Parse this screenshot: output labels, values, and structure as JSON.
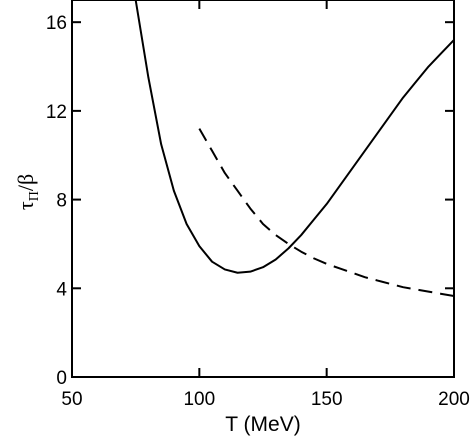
{
  "chart_data": {
    "type": "line",
    "xlabel": "T (MeV)",
    "ylabel": {
      "main": "τ",
      "sub": "Π",
      "tail": "/β"
    },
    "xlim": [
      50,
      200
    ],
    "ylim": [
      0,
      17
    ],
    "xticks": [
      "50",
      "100",
      "150",
      "200"
    ],
    "yticks": [
      "0",
      "4",
      "8",
      "12",
      "16"
    ],
    "grid": false,
    "series": [
      {
        "style": "solid",
        "x": [
          75,
          80,
          85,
          90,
          95,
          100,
          105,
          110,
          115,
          120,
          125,
          130,
          135,
          140,
          145,
          150,
          155,
          160,
          165,
          170,
          175,
          180,
          185,
          190,
          195,
          200
        ],
        "y": [
          17.0,
          13.5,
          10.5,
          8.4,
          6.9,
          5.9,
          5.2,
          4.85,
          4.7,
          4.75,
          4.95,
          5.3,
          5.8,
          6.4,
          7.1,
          7.8,
          8.6,
          9.4,
          10.2,
          11.0,
          11.8,
          12.6,
          13.3,
          14.0,
          14.6,
          15.2
        ]
      },
      {
        "style": "dashed",
        "x": [
          100,
          105,
          110,
          115,
          120,
          125,
          130,
          135,
          140,
          145,
          150,
          155,
          160,
          165,
          170,
          175,
          180,
          185,
          190,
          195,
          200
        ],
        "y": [
          11.2,
          10.2,
          9.2,
          8.4,
          7.6,
          6.9,
          6.4,
          6.0,
          5.65,
          5.35,
          5.1,
          4.9,
          4.7,
          4.5,
          4.35,
          4.2,
          4.05,
          3.95,
          3.85,
          3.75,
          3.65
        ]
      }
    ]
  }
}
